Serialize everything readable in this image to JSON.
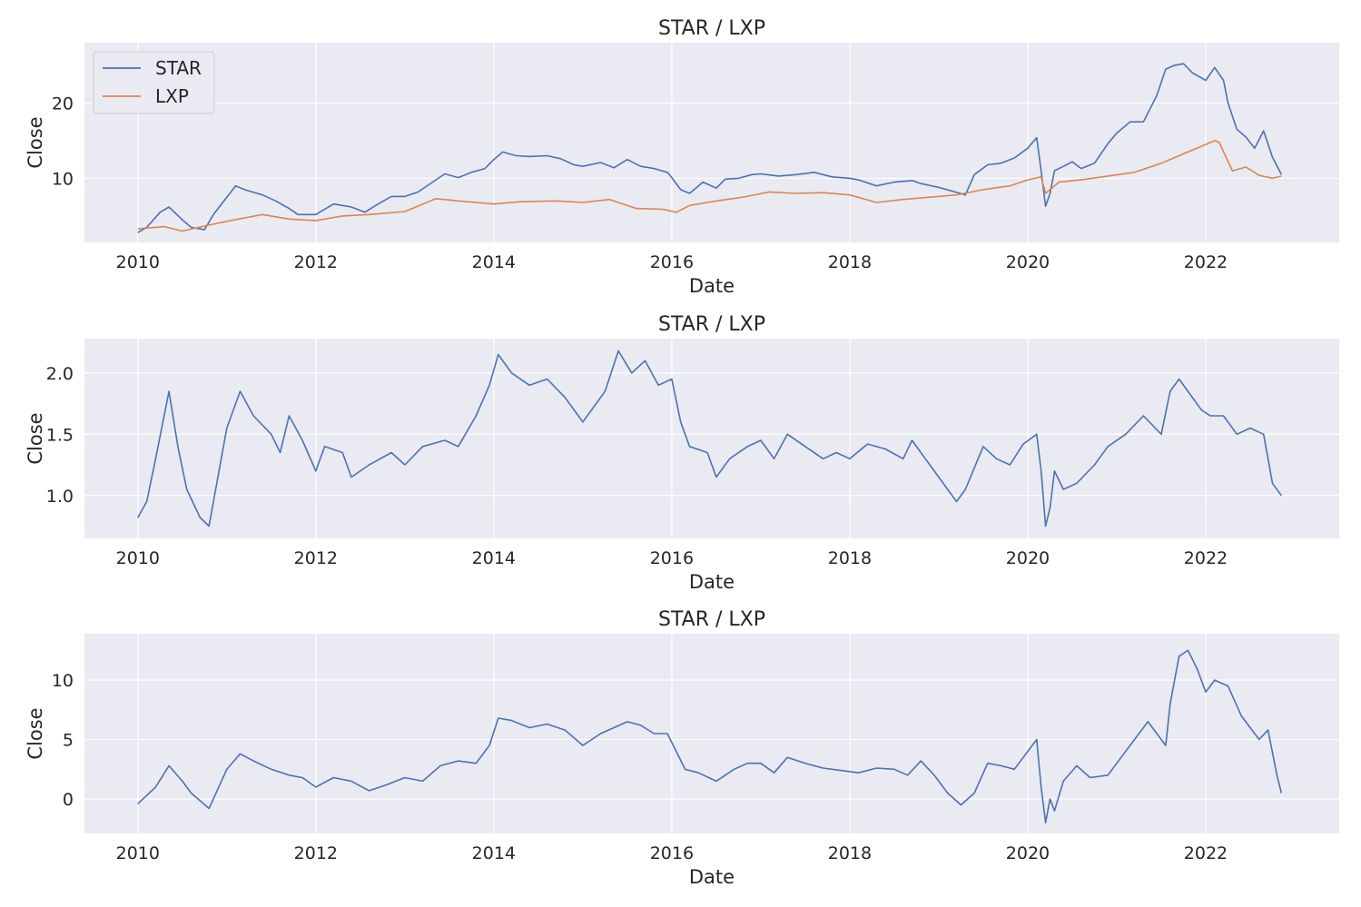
{
  "colors": {
    "star": "#4C72B0",
    "lxp": "#DD8452",
    "background": "#EAEAF2",
    "grid": "#FFFFFF"
  },
  "chart_data": [
    {
      "type": "line",
      "title": "STAR / LXP",
      "xlabel": "Date",
      "ylabel": "Close",
      "xlim": [
        2009.4,
        2023.5
      ],
      "ylim": [
        1.5,
        28
      ],
      "xticks": [
        2010,
        2012,
        2014,
        2016,
        2018,
        2020,
        2022
      ],
      "xtick_labels": [
        "2010",
        "2012",
        "2014",
        "2016",
        "2018",
        "2020",
        "2022"
      ],
      "yticks": [
        10,
        20
      ],
      "ytick_labels": [
        "10",
        "20"
      ],
      "grid": true,
      "legend": "upper-left",
      "series": [
        {
          "name": "STAR",
          "color": "#4C72B0",
          "x": [
            2010.0,
            2010.1,
            2010.25,
            2010.35,
            2010.5,
            2010.6,
            2010.75,
            2010.85,
            2011.0,
            2011.1,
            2011.2,
            2011.4,
            2011.55,
            2011.7,
            2011.8,
            2012.0,
            2012.2,
            2012.4,
            2012.55,
            2012.7,
            2012.85,
            2013.0,
            2013.15,
            2013.3,
            2013.45,
            2013.6,
            2013.75,
            2013.9,
            2014.0,
            2014.1,
            2014.25,
            2014.4,
            2014.6,
            2014.75,
            2014.9,
            2015.0,
            2015.2,
            2015.35,
            2015.5,
            2015.65,
            2015.8,
            2015.95,
            2016.0,
            2016.1,
            2016.2,
            2016.35,
            2016.5,
            2016.6,
            2016.75,
            2016.9,
            2017.0,
            2017.2,
            2017.4,
            2017.6,
            2017.8,
            2018.0,
            2018.1,
            2018.3,
            2018.5,
            2018.7,
            2018.8,
            2019.0,
            2019.15,
            2019.3,
            2019.4,
            2019.55,
            2019.7,
            2019.85,
            2020.0,
            2020.1,
            2020.15,
            2020.2,
            2020.25,
            2020.3,
            2020.4,
            2020.5,
            2020.6,
            2020.75,
            2020.9,
            2021.0,
            2021.15,
            2021.3,
            2021.45,
            2021.55,
            2021.65,
            2021.75,
            2021.85,
            2022.0,
            2022.1,
            2022.2,
            2022.25,
            2022.35,
            2022.45,
            2022.55,
            2022.65,
            2022.75,
            2022.85
          ],
          "values": [
            2.8,
            3.5,
            5.5,
            6.2,
            4.5,
            3.5,
            3.2,
            5.2,
            7.5,
            9.0,
            8.5,
            7.8,
            7.0,
            6.0,
            5.2,
            5.2,
            6.6,
            6.2,
            5.5,
            6.6,
            7.6,
            7.6,
            8.2,
            9.4,
            10.6,
            10.1,
            10.8,
            11.3,
            12.5,
            13.5,
            13.0,
            12.9,
            13.0,
            12.6,
            11.8,
            11.6,
            12.1,
            11.4,
            12.5,
            11.6,
            11.3,
            10.8,
            10.1,
            8.5,
            8.0,
            9.5,
            8.7,
            9.9,
            10.0,
            10.5,
            10.6,
            10.3,
            10.5,
            10.8,
            10.2,
            10.0,
            9.8,
            9.0,
            9.5,
            9.7,
            9.3,
            8.8,
            8.3,
            7.8,
            10.5,
            11.8,
            12.0,
            12.7,
            14.0,
            15.4,
            11.0,
            6.3,
            8.0,
            11.0,
            11.6,
            12.2,
            11.3,
            12.0,
            14.6,
            16.0,
            17.5,
            17.5,
            21.0,
            24.5,
            25.0,
            25.2,
            24.0,
            23.0,
            24.7,
            23.0,
            20.0,
            16.5,
            15.5,
            14.0,
            16.3,
            12.8,
            10.5
          ]
        },
        {
          "name": "LXP",
          "color": "#DD8452",
          "x": [
            2010.0,
            2010.3,
            2010.5,
            2010.8,
            2011.0,
            2011.4,
            2011.7,
            2012.0,
            2012.3,
            2012.6,
            2013.0,
            2013.35,
            2013.6,
            2014.0,
            2014.3,
            2014.7,
            2015.0,
            2015.3,
            2015.6,
            2015.9,
            2016.05,
            2016.2,
            2016.5,
            2016.8,
            2017.1,
            2017.4,
            2017.7,
            2018.0,
            2018.3,
            2018.6,
            2018.9,
            2019.2,
            2019.5,
            2019.8,
            2020.0,
            2020.15,
            2020.2,
            2020.35,
            2020.6,
            2020.9,
            2021.2,
            2021.5,
            2021.8,
            2022.0,
            2022.1,
            2022.15,
            2022.3,
            2022.45,
            2022.6,
            2022.75,
            2022.85
          ],
          "values": [
            3.3,
            3.6,
            3.0,
            3.8,
            4.3,
            5.2,
            4.6,
            4.4,
            5.0,
            5.2,
            5.6,
            7.3,
            7.0,
            6.6,
            6.9,
            7.0,
            6.8,
            7.2,
            6.0,
            5.9,
            5.5,
            6.4,
            7.0,
            7.5,
            8.2,
            8.0,
            8.1,
            7.8,
            6.8,
            7.2,
            7.5,
            7.8,
            8.5,
            9.0,
            9.8,
            10.2,
            8.0,
            9.5,
            9.8,
            10.3,
            10.8,
            12.0,
            13.5,
            14.5,
            15.0,
            14.8,
            11.0,
            11.5,
            10.4,
            10.0,
            10.3
          ]
        }
      ]
    },
    {
      "type": "line",
      "title": "STAR / LXP",
      "xlabel": "Date",
      "ylabel": "Close",
      "xlim": [
        2009.4,
        2023.5
      ],
      "ylim": [
        0.65,
        2.28
      ],
      "xticks": [
        2010,
        2012,
        2014,
        2016,
        2018,
        2020,
        2022
      ],
      "xtick_labels": [
        "2010",
        "2012",
        "2014",
        "2016",
        "2018",
        "2020",
        "2022"
      ],
      "yticks": [
        1.0,
        1.5,
        2.0
      ],
      "ytick_labels": [
        "1.0",
        "1.5",
        "2.0"
      ],
      "grid": true,
      "series": [
        {
          "color": "#4C72B0",
          "x": [
            2010.0,
            2010.1,
            2010.2,
            2010.35,
            2010.45,
            2010.55,
            2010.7,
            2010.8,
            2011.0,
            2011.15,
            2011.3,
            2011.5,
            2011.6,
            2011.7,
            2011.85,
            2012.0,
            2012.1,
            2012.3,
            2012.4,
            2012.6,
            2012.85,
            2013.0,
            2013.2,
            2013.45,
            2013.6,
            2013.8,
            2013.95,
            2014.05,
            2014.2,
            2014.4,
            2014.6,
            2014.8,
            2015.0,
            2015.1,
            2015.25,
            2015.4,
            2015.55,
            2015.7,
            2015.85,
            2016.0,
            2016.1,
            2016.2,
            2016.4,
            2016.5,
            2016.65,
            2016.85,
            2017.0,
            2017.15,
            2017.3,
            2017.5,
            2017.7,
            2017.85,
            2018.0,
            2018.2,
            2018.4,
            2018.6,
            2018.7,
            2018.85,
            2019.0,
            2019.2,
            2019.3,
            2019.5,
            2019.65,
            2019.8,
            2019.95,
            2020.1,
            2020.15,
            2020.2,
            2020.25,
            2020.3,
            2020.4,
            2020.55,
            2020.75,
            2020.9,
            2021.1,
            2021.3,
            2021.5,
            2021.6,
            2021.7,
            2021.8,
            2021.95,
            2022.05,
            2022.2,
            2022.35,
            2022.5,
            2022.65,
            2022.75,
            2022.85
          ],
          "values": [
            0.82,
            0.95,
            1.3,
            1.85,
            1.4,
            1.05,
            0.82,
            0.75,
            1.55,
            1.85,
            1.65,
            1.5,
            1.35,
            1.65,
            1.45,
            1.2,
            1.4,
            1.35,
            1.15,
            1.25,
            1.35,
            1.25,
            1.4,
            1.45,
            1.4,
            1.65,
            1.9,
            2.15,
            2.0,
            1.9,
            1.95,
            1.8,
            1.6,
            1.7,
            1.85,
            2.18,
            2.0,
            2.1,
            1.9,
            1.95,
            1.6,
            1.4,
            1.35,
            1.15,
            1.3,
            1.4,
            1.45,
            1.3,
            1.5,
            1.4,
            1.3,
            1.35,
            1.3,
            1.42,
            1.38,
            1.3,
            1.45,
            1.3,
            1.15,
            0.95,
            1.05,
            1.4,
            1.3,
            1.25,
            1.42,
            1.5,
            1.2,
            0.75,
            0.9,
            1.2,
            1.05,
            1.1,
            1.25,
            1.4,
            1.5,
            1.65,
            1.5,
            1.85,
            1.95,
            1.85,
            1.7,
            1.65,
            1.65,
            1.5,
            1.55,
            1.5,
            1.1,
            1.0
          ]
        }
      ]
    },
    {
      "type": "line",
      "title": "STAR / LXP",
      "xlabel": "Date",
      "ylabel": "Close",
      "xlim": [
        2009.4,
        2023.5
      ],
      "ylim": [
        -2.9,
        13.9
      ],
      "xticks": [
        2010,
        2012,
        2014,
        2016,
        2018,
        2020,
        2022
      ],
      "xtick_labels": [
        "2010",
        "2012",
        "2014",
        "2016",
        "2018",
        "2020",
        "2022"
      ],
      "yticks": [
        0,
        5,
        10
      ],
      "ytick_labels": [
        "0",
        "5",
        "10"
      ],
      "grid": true,
      "series": [
        {
          "color": "#4C72B0",
          "x": [
            2010.0,
            2010.1,
            2010.2,
            2010.35,
            2010.5,
            2010.6,
            2010.8,
            2011.0,
            2011.15,
            2011.3,
            2011.5,
            2011.7,
            2011.85,
            2012.0,
            2012.2,
            2012.4,
            2012.6,
            2012.8,
            2013.0,
            2013.2,
            2013.4,
            2013.6,
            2013.8,
            2013.95,
            2014.05,
            2014.2,
            2014.4,
            2014.6,
            2014.8,
            2015.0,
            2015.2,
            2015.35,
            2015.5,
            2015.65,
            2015.8,
            2015.95,
            2016.05,
            2016.15,
            2016.3,
            2016.5,
            2016.7,
            2016.85,
            2017.0,
            2017.15,
            2017.3,
            2017.5,
            2017.7,
            2017.9,
            2018.1,
            2018.3,
            2018.5,
            2018.65,
            2018.8,
            2018.95,
            2019.1,
            2019.25,
            2019.4,
            2019.55,
            2019.7,
            2019.85,
            2020.0,
            2020.1,
            2020.15,
            2020.2,
            2020.25,
            2020.3,
            2020.4,
            2020.55,
            2020.7,
            2020.9,
            2021.0,
            2021.2,
            2021.35,
            2021.5,
            2021.55,
            2021.6,
            2021.7,
            2021.8,
            2021.9,
            2022.0,
            2022.1,
            2022.25,
            2022.4,
            2022.5,
            2022.6,
            2022.7,
            2022.8,
            2022.85
          ],
          "values": [
            -0.4,
            0.3,
            1.0,
            2.8,
            1.5,
            0.5,
            -0.8,
            2.5,
            3.8,
            3.2,
            2.5,
            2.0,
            1.8,
            1.0,
            1.8,
            1.5,
            0.7,
            1.2,
            1.8,
            1.5,
            2.8,
            3.2,
            3.0,
            4.5,
            6.8,
            6.6,
            6.0,
            6.3,
            5.8,
            4.5,
            5.5,
            6.0,
            6.5,
            6.2,
            5.5,
            5.5,
            4.0,
            2.5,
            2.2,
            1.5,
            2.5,
            3.0,
            3.0,
            2.2,
            3.5,
            3.0,
            2.6,
            2.4,
            2.2,
            2.6,
            2.5,
            2.0,
            3.2,
            2.0,
            0.5,
            -0.5,
            0.5,
            3.0,
            2.8,
            2.5,
            4.0,
            5.0,
            1.0,
            -2.0,
            0.0,
            -1.0,
            1.5,
            2.8,
            1.8,
            2.0,
            3.0,
            5.0,
            6.5,
            5.0,
            4.5,
            8.0,
            12.0,
            12.5,
            11.0,
            9.0,
            10.0,
            9.5,
            7.0,
            6.0,
            5.0,
            5.8,
            2.0,
            0.5
          ]
        }
      ]
    }
  ]
}
